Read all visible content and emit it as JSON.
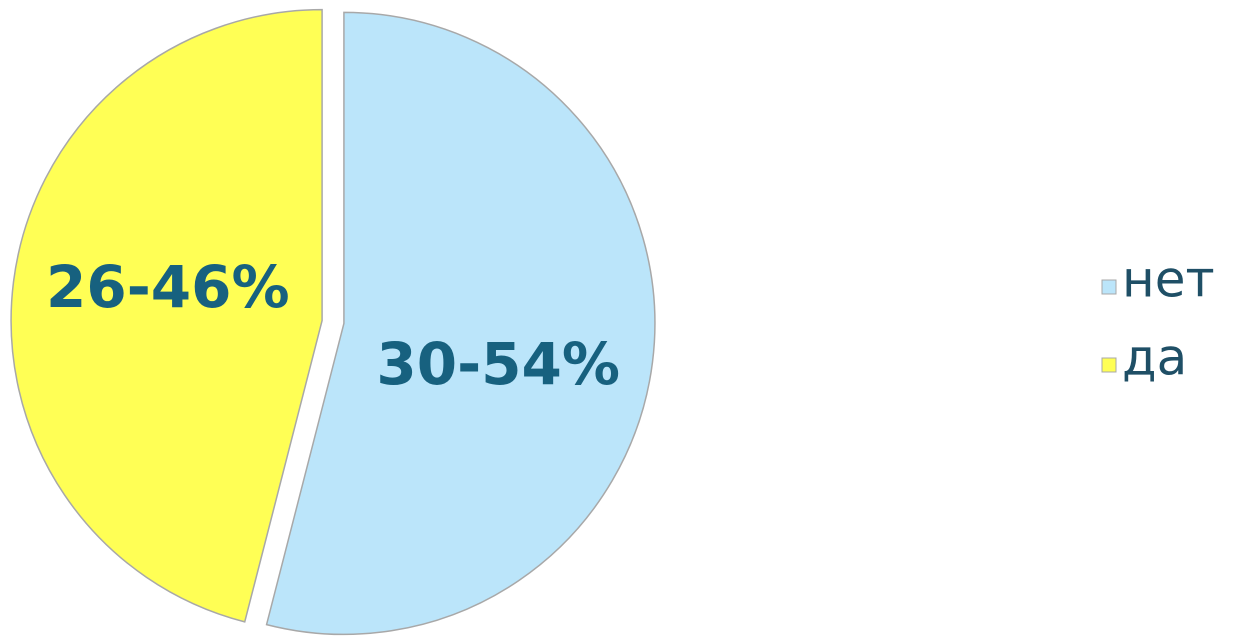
{
  "chart_data": {
    "type": "pie",
    "categories": [
      "нет",
      "да"
    ],
    "values": [
      54,
      46
    ],
    "value_labels": [
      "30-54%",
      "26-46%"
    ],
    "colors": [
      "#bbe5fa",
      "#ffff55"
    ],
    "legend": "right"
  }
}
